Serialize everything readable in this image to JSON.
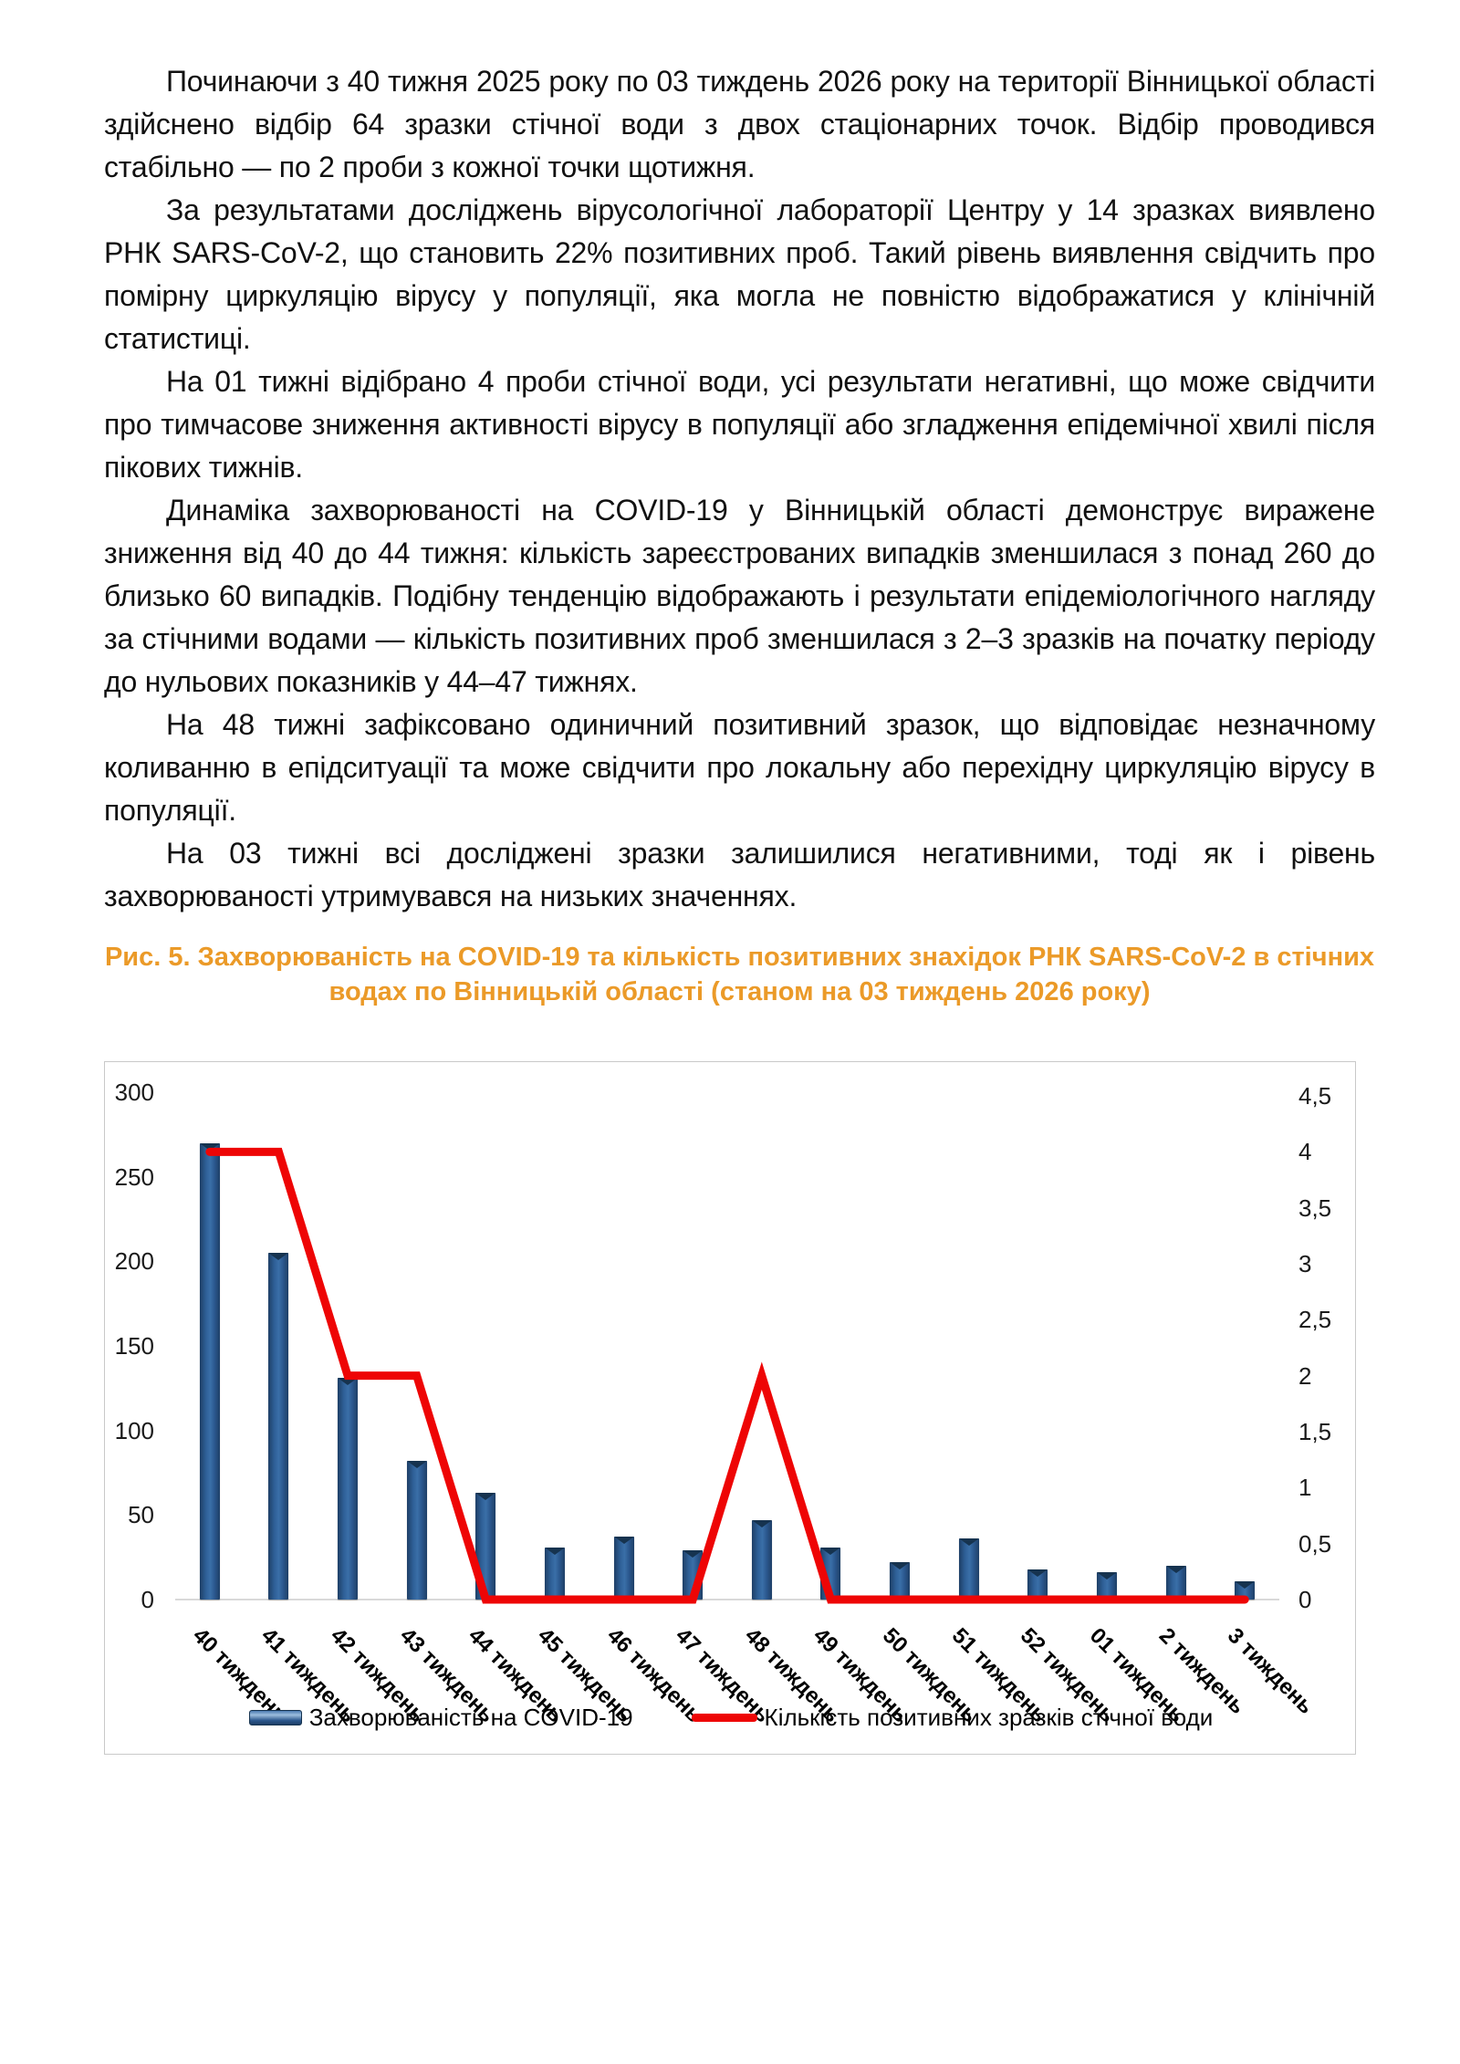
{
  "document": {
    "paragraphs": [
      "Починаючи з 40 тижня 2025 року по 03 тиждень 2026 року на території Вінницької області здійснено відбір 64 зразки стічної води з двох стаціонарних точок. Відбір проводився стабільно — по 2 проби з кожної точки щотижня.",
      "За результатами досліджень вірусологічної лабораторії Центру у 14 зразках виявлено РНК SARS-CoV-2, що становить 22% позитивних проб. Такий рівень виявлення свідчить про помірну циркуляцію вірусу у популяції, яка могла не повністю відображатися у клінічній статистиці.",
      "На 01 тижні відібрано 4 проби стічної води, усі результати негативні, що може свідчити про тимчасове зниження активності вірусу в популяції або згладження епідемічної хвилі після пікових тижнів.",
      "Динаміка захворюваності на COVID-19 у Вінницькій області демонструє виражене зниження від 40 до 44 тижня: кількість зареєстрованих випадків зменшилася з понад 260 до близько 60 випадків. Подібну тенденцію відображають і результати епідеміологічного нагляду за стічними водами — кількість позитивних проб зменшилася з 2–3 зразків на початку періоду до нульових показників у 44–47 тижнях.",
      "На 48 тижні зафіксовано одиничний позитивний зразок, що відповідає незначному коливанню в епідситуації та може свідчити про локальну або перехідну циркуляцію вірусу в популяції.",
      "На 03 тижні всі досліджені зразки залишилися негативними, тоді як і рівень захворюваності утримувався на низьких значеннях."
    ]
  },
  "figure": {
    "caption_line1": "Рис. 5. Захворюваність на COVID-19 та кількість позитивних знахідок РНК SARS-CoV-2 в стічних",
    "caption_line2": "водах по Вінницькій області (станом на 03 тиждень 2026 року)",
    "caption_color": "#EB9A28"
  },
  "chart_data": {
    "type": "bar",
    "combo": "bar+line",
    "categories": [
      "40 тиждень",
      "41 тиждень",
      "42 тиждень",
      "43 тиждень",
      "44 тиждень",
      "45 тиждень",
      "46 тиждень",
      "47 тиждень",
      "48 тиждень",
      "49 тиждень",
      "50 тиждень",
      "51 тиждень",
      "52 тиждень",
      "01 тиждень",
      "2 тиждень",
      "3 тиждень"
    ],
    "series": [
      {
        "name": "Захворюваність на COVID-19",
        "type": "bar",
        "axis": "left",
        "color": "#2e5f96",
        "values": [
          270,
          205,
          131,
          82,
          63,
          31,
          37,
          29,
          47,
          31,
          22,
          36,
          18,
          16,
          20,
          11
        ]
      },
      {
        "name": "Кількість позитивних зразків стічної води",
        "type": "line",
        "axis": "right",
        "color": "#ee0505",
        "values": [
          4,
          4,
          2,
          2,
          0,
          0,
          0,
          0,
          2,
          0,
          0,
          0,
          0,
          0,
          0,
          0
        ]
      }
    ],
    "left_axis": {
      "min": 0,
      "max": 300,
      "step": 50,
      "ticks": [
        "0",
        "50",
        "100",
        "150",
        "200",
        "250",
        "300"
      ]
    },
    "right_axis": {
      "min": 0,
      "max": 4.5,
      "step": 0.5,
      "ticks": [
        "0",
        "0,5",
        "1",
        "1,5",
        "2",
        "2,5",
        "3",
        "3,5",
        "4",
        "4,5"
      ]
    },
    "grid": false,
    "legend_position": "bottom",
    "title": ""
  }
}
